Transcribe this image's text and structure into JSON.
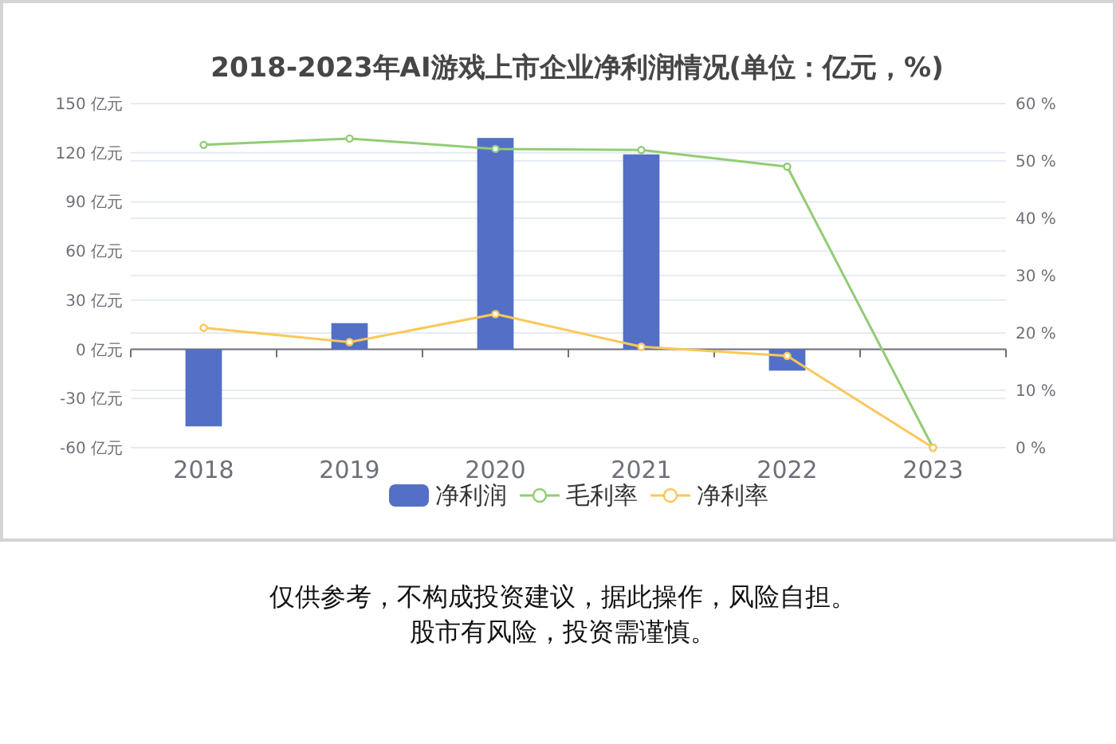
{
  "chart_data": {
    "type": "bar",
    "title": "2018-2023年AI游戏上市企业净利润情况(单位：亿元，%)",
    "categories": [
      "2018",
      "2019",
      "2020",
      "2021",
      "2022",
      "2023"
    ],
    "series": [
      {
        "name": "净利润",
        "color": "#5470c6",
        "values": [
          -47,
          16,
          129,
          119,
          -13,
          null
        ]
      },
      {
        "name": "毛利率",
        "type": "line",
        "axis": "y2",
        "color": "#91cc75",
        "values": [
          52.8,
          53.9,
          52.1,
          51.9,
          49.0,
          0
        ]
      },
      {
        "name": "净利率",
        "type": "line",
        "axis": "y2",
        "color": "#fac858",
        "values": [
          20.9,
          18.4,
          23.3,
          17.6,
          16.0,
          0
        ]
      }
    ],
    "ylim": [
      -60,
      150
    ],
    "yticks": [
      {
        "value": -60,
        "label": "-60 亿元"
      },
      {
        "value": -30,
        "label": "-30 亿元"
      },
      {
        "value": 0,
        "label": "0 亿元"
      },
      {
        "value": 30,
        "label": "30 亿元"
      },
      {
        "value": 60,
        "label": "60 亿元"
      },
      {
        "value": 90,
        "label": "90 亿元"
      },
      {
        "value": 120,
        "label": "120 亿元"
      },
      {
        "value": 150,
        "label": "150 亿元"
      }
    ],
    "y2lim": [
      0,
      60
    ],
    "y2ticks": [
      {
        "value": 0,
        "label": "0 %"
      },
      {
        "value": 10,
        "label": "10 %"
      },
      {
        "value": 20,
        "label": "20 %"
      },
      {
        "value": 30,
        "label": "30 %"
      },
      {
        "value": 40,
        "label": "40 %"
      },
      {
        "value": 50,
        "label": "50 %"
      },
      {
        "value": 60,
        "label": "60 %"
      }
    ],
    "grid": "y",
    "legend": "bottom",
    "marker": "circle",
    "line_style": "solid",
    "annotations": [
      "仅供参考，不构成投资建议，据此操作，风险自担。",
      "股市有风险，投资需谨慎。"
    ]
  }
}
